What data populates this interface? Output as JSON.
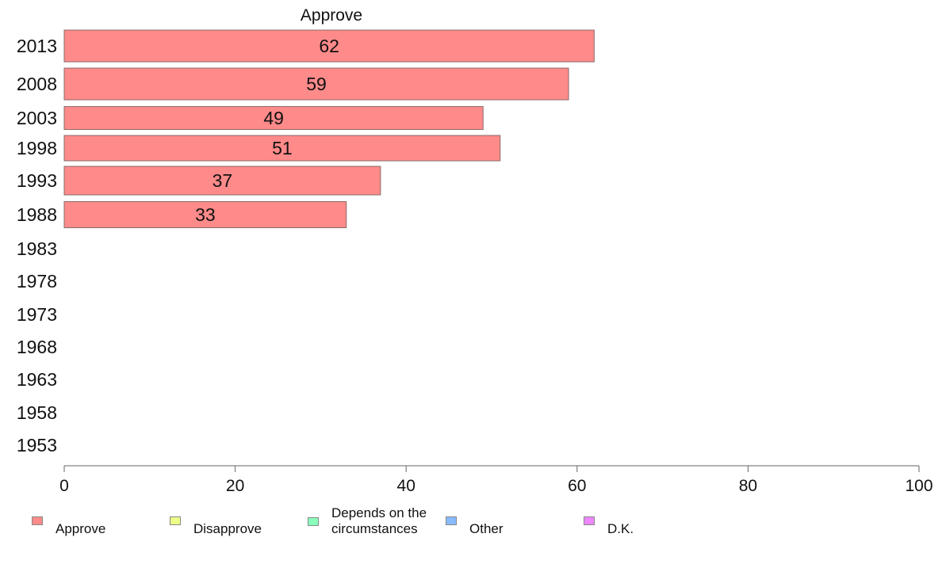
{
  "chart_data": {
    "type": "bar",
    "orientation": "horizontal",
    "title": "Approve",
    "categories": [
      "2013",
      "2008",
      "2003",
      "1998",
      "1993",
      "1988",
      "1983",
      "1978",
      "1973",
      "1968",
      "1963",
      "1958",
      "1953"
    ],
    "series": [
      {
        "name": "Approve",
        "color": "#ff8a8a",
        "values": [
          62,
          59,
          49,
          51,
          37,
          33,
          null,
          null,
          null,
          null,
          null,
          null,
          null
        ],
        "labels": [
          "62",
          "59",
          "49",
          "51",
          "37",
          "33"
        ]
      }
    ],
    "xlim": [
      0,
      100
    ],
    "xticks": [
      "0",
      "20",
      "40",
      "60",
      "80",
      "100"
    ],
    "grid": false,
    "legend_position": "bottom"
  },
  "legend": {
    "items": [
      {
        "label": "Approve",
        "color": "#ff8a8a"
      },
      {
        "label": "Disapprove",
        "color": "#eeff88"
      },
      {
        "label": "Depends on the circumstances",
        "color": "#88ffbb"
      },
      {
        "label": "Other",
        "color": "#88bbff"
      },
      {
        "label": "D.K.",
        "color": "#ee88ff"
      }
    ]
  }
}
